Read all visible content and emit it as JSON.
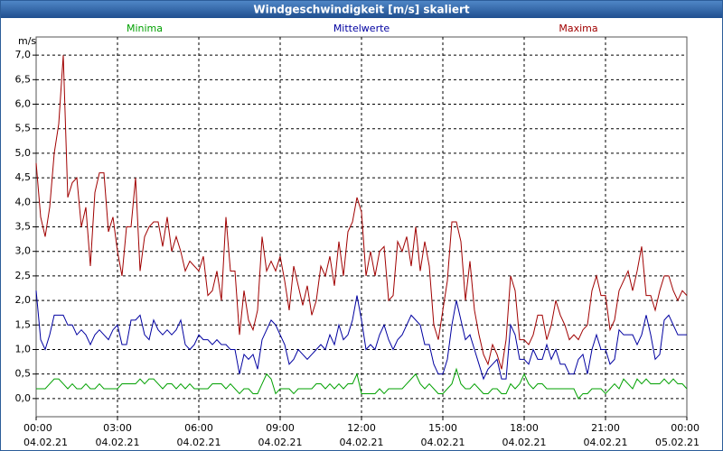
{
  "chart_data": {
    "type": "line",
    "title": "Windgeschwindigkeit [m/s] skaliert",
    "ylabel": "m/s",
    "xlim": [
      0,
      1440
    ],
    "xticks": [
      {
        "value": 0,
        "label": "00:00"
      },
      {
        "value": 180,
        "label": "03:00"
      },
      {
        "value": 360,
        "label": "06:00"
      },
      {
        "value": 540,
        "label": "09:00"
      },
      {
        "value": 720,
        "label": "12:00"
      },
      {
        "value": 900,
        "label": "15:00"
      },
      {
        "value": 1080,
        "label": "18:00"
      },
      {
        "value": 1260,
        "label": "21:00"
      },
      {
        "value": 1440,
        "label": "00:00"
      }
    ],
    "xtick_dates": [
      "04.02.21",
      "04.02.21",
      "04.02.21",
      "04.02.21",
      "04.02.21",
      "04.02.21",
      "04.02.21",
      "04.02.21",
      "05.02.21"
    ],
    "ylim": [
      -0.37,
      7.37
    ],
    "yticks": [
      {
        "value": 0,
        "label": "0,0"
      },
      {
        "value": 0.5,
        "label": "0,5"
      },
      {
        "value": 1,
        "label": "1,0"
      },
      {
        "value": 1.5,
        "label": "1,5"
      },
      {
        "value": 2,
        "label": "2,0"
      },
      {
        "value": 2.5,
        "label": "2,5"
      },
      {
        "value": 3,
        "label": "3,0"
      },
      {
        "value": 3.5,
        "label": "3,5"
      },
      {
        "value": 4,
        "label": "4,0"
      },
      {
        "value": 4.5,
        "label": "4,5"
      },
      {
        "value": 5,
        "label": "5,0"
      },
      {
        "value": 5.5,
        "label": "5,5"
      },
      {
        "value": 6,
        "label": "6,0"
      },
      {
        "value": 6.5,
        "label": "6,5"
      },
      {
        "value": 7,
        "label": "7,0"
      }
    ],
    "grid": true,
    "x": [
      0,
      10,
      20,
      30,
      40,
      50,
      60,
      70,
      80,
      90,
      100,
      110,
      120,
      130,
      140,
      150,
      160,
      170,
      180,
      190,
      200,
      210,
      220,
      230,
      240,
      250,
      260,
      270,
      280,
      290,
      300,
      310,
      320,
      330,
      340,
      350,
      360,
      370,
      380,
      390,
      400,
      410,
      420,
      430,
      440,
      450,
      460,
      470,
      480,
      490,
      500,
      510,
      520,
      530,
      540,
      550,
      560,
      570,
      580,
      590,
      600,
      610,
      620,
      630,
      640,
      650,
      660,
      670,
      680,
      690,
      700,
      710,
      720,
      730,
      740,
      750,
      760,
      770,
      780,
      790,
      800,
      810,
      820,
      830,
      840,
      850,
      860,
      870,
      880,
      890,
      900,
      910,
      920,
      930,
      940,
      950,
      960,
      970,
      980,
      990,
      1000,
      1010,
      1020,
      1030,
      1040,
      1050,
      1060,
      1070,
      1080,
      1090,
      1100,
      1110,
      1120,
      1130,
      1140,
      1150,
      1160,
      1170,
      1180,
      1190,
      1200,
      1210,
      1220,
      1230,
      1240,
      1250,
      1260,
      1270,
      1280,
      1290,
      1300,
      1310,
      1320,
      1330,
      1340,
      1350,
      1360,
      1370,
      1380,
      1390,
      1400,
      1410,
      1420,
      1430,
      1440
    ],
    "series": [
      {
        "name": "Minima",
        "color": "#00a000",
        "values": [
          0.2,
          0.2,
          0.2,
          0.3,
          0.4,
          0.4,
          0.3,
          0.2,
          0.3,
          0.2,
          0.2,
          0.3,
          0.2,
          0.2,
          0.3,
          0.2,
          0.2,
          0.2,
          0.2,
          0.3,
          0.3,
          0.3,
          0.3,
          0.4,
          0.3,
          0.4,
          0.4,
          0.3,
          0.2,
          0.3,
          0.3,
          0.2,
          0.3,
          0.2,
          0.3,
          0.2,
          0.2,
          0.2,
          0.2,
          0.3,
          0.3,
          0.3,
          0.2,
          0.3,
          0.2,
          0.1,
          0.2,
          0.2,
          0.1,
          0.1,
          0.3,
          0.5,
          0.4,
          0.1,
          0.2,
          0.2,
          0.2,
          0.1,
          0.2,
          0.2,
          0.2,
          0.2,
          0.3,
          0.3,
          0.2,
          0.3,
          0.2,
          0.3,
          0.2,
          0.3,
          0.3,
          0.5,
          0.1,
          0.1,
          0.1,
          0.1,
          0.2,
          0.1,
          0.2,
          0.2,
          0.2,
          0.2,
          0.3,
          0.4,
          0.5,
          0.3,
          0.2,
          0.3,
          0.2,
          0.1,
          0.1,
          0.2,
          0.3,
          0.6,
          0.3,
          0.2,
          0.2,
          0.3,
          0.2,
          0.1,
          0.1,
          0.2,
          0.2,
          0.1,
          0.1,
          0.3,
          0.2,
          0.3,
          0.5,
          0.3,
          0.2,
          0.3,
          0.3,
          0.2,
          0.2,
          0.2,
          0.2,
          0.2,
          0.2,
          0.2,
          0.0,
          0.1,
          0.1,
          0.2,
          0.2,
          0.2,
          0.1,
          0.2,
          0.3,
          0.2,
          0.4,
          0.3,
          0.2,
          0.4,
          0.3,
          0.4,
          0.3,
          0.3,
          0.3,
          0.4,
          0.3,
          0.4,
          0.3,
          0.3,
          0.2
        ]
      },
      {
        "name": "Mittelwerte",
        "color": "#0000a0",
        "values": [
          2.2,
          1.2,
          1.0,
          1.3,
          1.7,
          1.7,
          1.7,
          1.5,
          1.5,
          1.3,
          1.4,
          1.3,
          1.1,
          1.3,
          1.4,
          1.3,
          1.2,
          1.4,
          1.5,
          1.1,
          1.1,
          1.6,
          1.6,
          1.7,
          1.3,
          1.2,
          1.6,
          1.4,
          1.3,
          1.4,
          1.3,
          1.4,
          1.6,
          1.1,
          1.0,
          1.1,
          1.3,
          1.2,
          1.2,
          1.1,
          1.2,
          1.1,
          1.1,
          1.0,
          1.0,
          0.5,
          0.9,
          0.8,
          0.9,
          0.6,
          1.2,
          1.4,
          1.6,
          1.5,
          1.3,
          1.1,
          0.7,
          0.8,
          1.0,
          0.9,
          0.8,
          0.9,
          1.0,
          1.1,
          1.0,
          1.3,
          1.1,
          1.5,
          1.2,
          1.3,
          1.6,
          2.1,
          1.6,
          1.0,
          1.1,
          1.0,
          1.3,
          1.5,
          1.2,
          1.0,
          1.2,
          1.3,
          1.5,
          1.7,
          1.6,
          1.5,
          1.1,
          1.1,
          0.7,
          0.5,
          0.5,
          0.8,
          1.5,
          2.0,
          1.6,
          1.2,
          1.3,
          1.0,
          0.7,
          0.4,
          0.6,
          0.7,
          0.8,
          0.4,
          0.4,
          1.5,
          1.3,
          0.8,
          0.8,
          0.7,
          1.0,
          0.8,
          0.8,
          1.1,
          0.8,
          1.0,
          0.7,
          0.7,
          0.5,
          0.5,
          0.8,
          0.9,
          0.5,
          1.0,
          1.3,
          1.0,
          1.0,
          0.7,
          0.8,
          1.4,
          1.3,
          1.3,
          1.3,
          1.1,
          1.3,
          1.7,
          1.3,
          0.8,
          0.9,
          1.6,
          1.7,
          1.5,
          1.3,
          1.3,
          1.3
        ]
      },
      {
        "name": "Maxima",
        "color": "#a00000",
        "values": [
          4.8,
          3.7,
          3.3,
          3.9,
          5.0,
          5.6,
          7.0,
          4.1,
          4.4,
          4.5,
          3.5,
          3.9,
          2.7,
          4.2,
          4.6,
          4.6,
          3.4,
          3.7,
          3.0,
          2.5,
          3.5,
          3.5,
          4.5,
          2.6,
          3.3,
          3.5,
          3.6,
          3.6,
          3.1,
          3.7,
          3.0,
          3.3,
          3.0,
          2.6,
          2.8,
          2.7,
          2.6,
          2.9,
          2.1,
          2.2,
          2.6,
          2.0,
          3.7,
          2.6,
          2.6,
          1.3,
          2.2,
          1.6,
          1.4,
          1.8,
          3.3,
          2.6,
          2.8,
          2.6,
          2.9,
          2.4,
          1.8,
          2.7,
          2.3,
          1.9,
          2.3,
          1.7,
          2.0,
          2.7,
          2.5,
          2.9,
          2.3,
          3.2,
          2.5,
          3.4,
          3.6,
          4.1,
          3.8,
          2.5,
          3.0,
          2.5,
          3.0,
          3.1,
          2.0,
          2.1,
          3.2,
          3.0,
          3.3,
          2.7,
          3.5,
          2.6,
          3.2,
          2.7,
          1.5,
          1.2,
          1.8,
          2.4,
          3.6,
          3.6,
          3.2,
          2.0,
          2.8,
          1.8,
          1.3,
          0.9,
          0.7,
          1.1,
          0.9,
          0.6,
          1.2,
          2.5,
          2.2,
          1.2,
          1.2,
          1.1,
          1.3,
          1.7,
          1.7,
          1.2,
          1.5,
          2.0,
          1.7,
          1.5,
          1.2,
          1.3,
          1.2,
          1.4,
          1.5,
          2.2,
          2.5,
          2.1,
          2.1,
          1.4,
          1.6,
          2.2,
          2.4,
          2.6,
          2.2,
          2.6,
          3.1,
          2.1,
          2.1,
          1.8,
          2.2,
          2.5,
          2.5,
          2.2,
          2.0,
          2.2,
          2.1
        ]
      }
    ]
  }
}
